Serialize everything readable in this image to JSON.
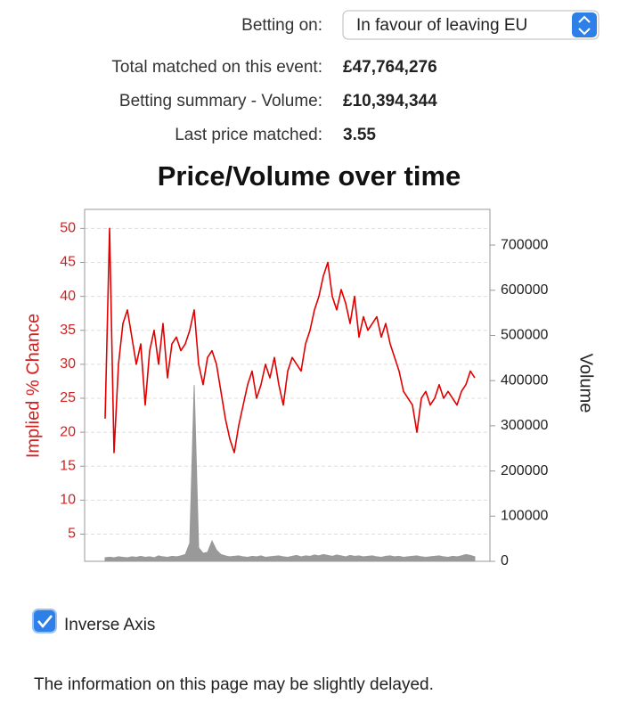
{
  "header": {
    "betting_on_label": "Betting on:",
    "betting_on_value": "In favour of leaving EU"
  },
  "summary": [
    {
      "label": "Total matched on this event:",
      "value": "£47,764,276"
    },
    {
      "label": "Betting summary - Volume:",
      "value": "£10,394,344"
    },
    {
      "label": "Last price matched:",
      "value": "3.55"
    }
  ],
  "chart_data": {
    "type": "line",
    "title": "Price/Volume over time",
    "y_label": "Implied % Chance",
    "y2_label": "Volume",
    "ylim": [
      1,
      52.8
    ],
    "yticks": [
      5,
      10,
      15,
      20,
      25,
      30,
      35,
      40,
      45,
      50
    ],
    "y2lim": [
      0,
      779000
    ],
    "y2ticks": [
      0,
      100000,
      200000,
      300000,
      400000,
      500000,
      600000,
      700000
    ],
    "grid": true,
    "series": [
      {
        "color": "#e00000",
        "values": [
          22,
          50,
          17,
          30,
          36,
          38,
          34,
          30,
          33,
          24,
          32,
          35,
          30,
          36,
          28,
          33,
          34,
          32,
          33,
          35,
          38,
          30,
          27,
          31,
          32,
          30,
          26,
          22,
          19,
          17,
          21,
          24,
          27,
          29,
          25,
          27,
          30,
          28,
          31,
          27,
          24,
          29,
          31,
          30,
          29,
          33,
          35,
          38,
          40,
          43,
          45,
          40,
          38,
          41,
          39,
          36,
          40,
          34,
          37,
          35,
          36,
          37,
          34,
          36,
          33,
          31,
          29,
          26,
          25,
          24,
          20,
          25,
          26,
          24,
          25,
          27,
          25,
          26,
          25,
          24,
          26,
          27,
          29,
          28
        ]
      },
      {
        "color": "#999999",
        "axis": "y2",
        "values": [
          8000,
          9000,
          8000,
          10000,
          9000,
          8000,
          10000,
          9000,
          11000,
          9000,
          10000,
          8000,
          12000,
          10000,
          9000,
          11000,
          10000,
          12000,
          15000,
          40000,
          390000,
          30000,
          18000,
          20000,
          45000,
          25000,
          15000,
          12000,
          10000,
          11000,
          12000,
          10000,
          9000,
          11000,
          10000,
          12000,
          9000,
          10000,
          11000,
          12000,
          10000,
          9000,
          11000,
          13000,
          10000,
          12000,
          11000,
          14000,
          12000,
          15000,
          13000,
          11000,
          14000,
          12000,
          10000,
          13000,
          11000,
          12000,
          10000,
          11000,
          12000,
          10000,
          9000,
          11000,
          12000,
          10000,
          11000,
          9000,
          10000,
          11000,
          12000,
          10000,
          9000,
          10000,
          11000,
          12000,
          10000,
          9000,
          11000,
          10000,
          12000,
          15000,
          13000,
          10000
        ]
      }
    ]
  },
  "checkbox": {
    "label": "Inverse Axis",
    "checked": true
  },
  "footer": "The information on this page may be slightly delayed."
}
